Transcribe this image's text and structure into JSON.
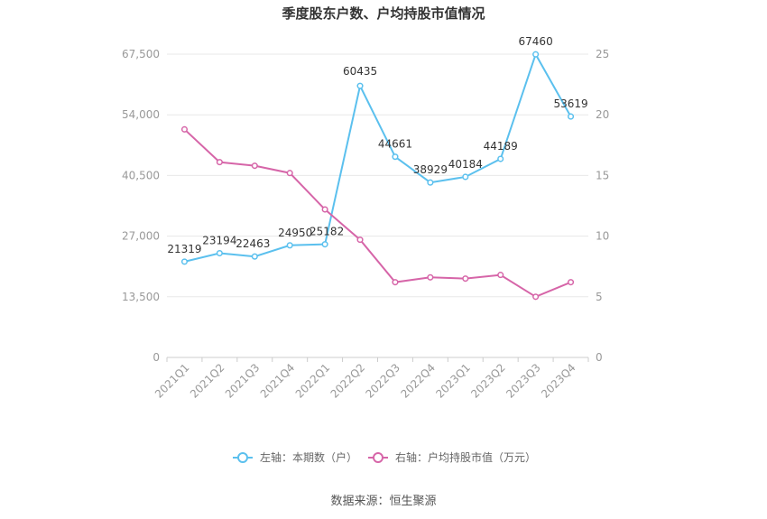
{
  "chart_data": {
    "type": "line",
    "title": "季度股东户数、户均持股市值情况",
    "categories": [
      "2021Q1",
      "2021Q2",
      "2021Q3",
      "2021Q4",
      "2022Q1",
      "2022Q2",
      "2022Q3",
      "2022Q4",
      "2023Q1",
      "2023Q2",
      "2023Q3",
      "2023Q4"
    ],
    "left_axis": {
      "ticks": [
        "0",
        "13,500",
        "27,000",
        "40,500",
        "54,000",
        "67,500"
      ],
      "ylim": [
        0,
        67500
      ]
    },
    "right_axis": {
      "ticks": [
        "0",
        "5",
        "10",
        "15",
        "20",
        "25"
      ],
      "ylim": [
        0,
        25
      ]
    },
    "series": [
      {
        "name": "左轴：本期数（户）",
        "axis": "left",
        "color": "#5bc0ee",
        "values": [
          21319,
          23194,
          22463,
          24950,
          25182,
          60435,
          44661,
          38929,
          40184,
          44189,
          67460,
          53619
        ],
        "labels": [
          "21319",
          "23194",
          "22463",
          "24950",
          "25182",
          "60435",
          "44661",
          "38929",
          "40184",
          "44189",
          "67460",
          "53619"
        ]
      },
      {
        "name": "右轴：户均持股市值（万元）",
        "axis": "right",
        "color": "#d665a8",
        "values": [
          18.8,
          16.1,
          15.8,
          15.2,
          12.2,
          9.7,
          6.2,
          6.6,
          6.5,
          6.8,
          5.0,
          6.2
        ]
      }
    ],
    "grid": true,
    "legend": "bottom-center"
  },
  "source": "数据来源：恒生聚源"
}
